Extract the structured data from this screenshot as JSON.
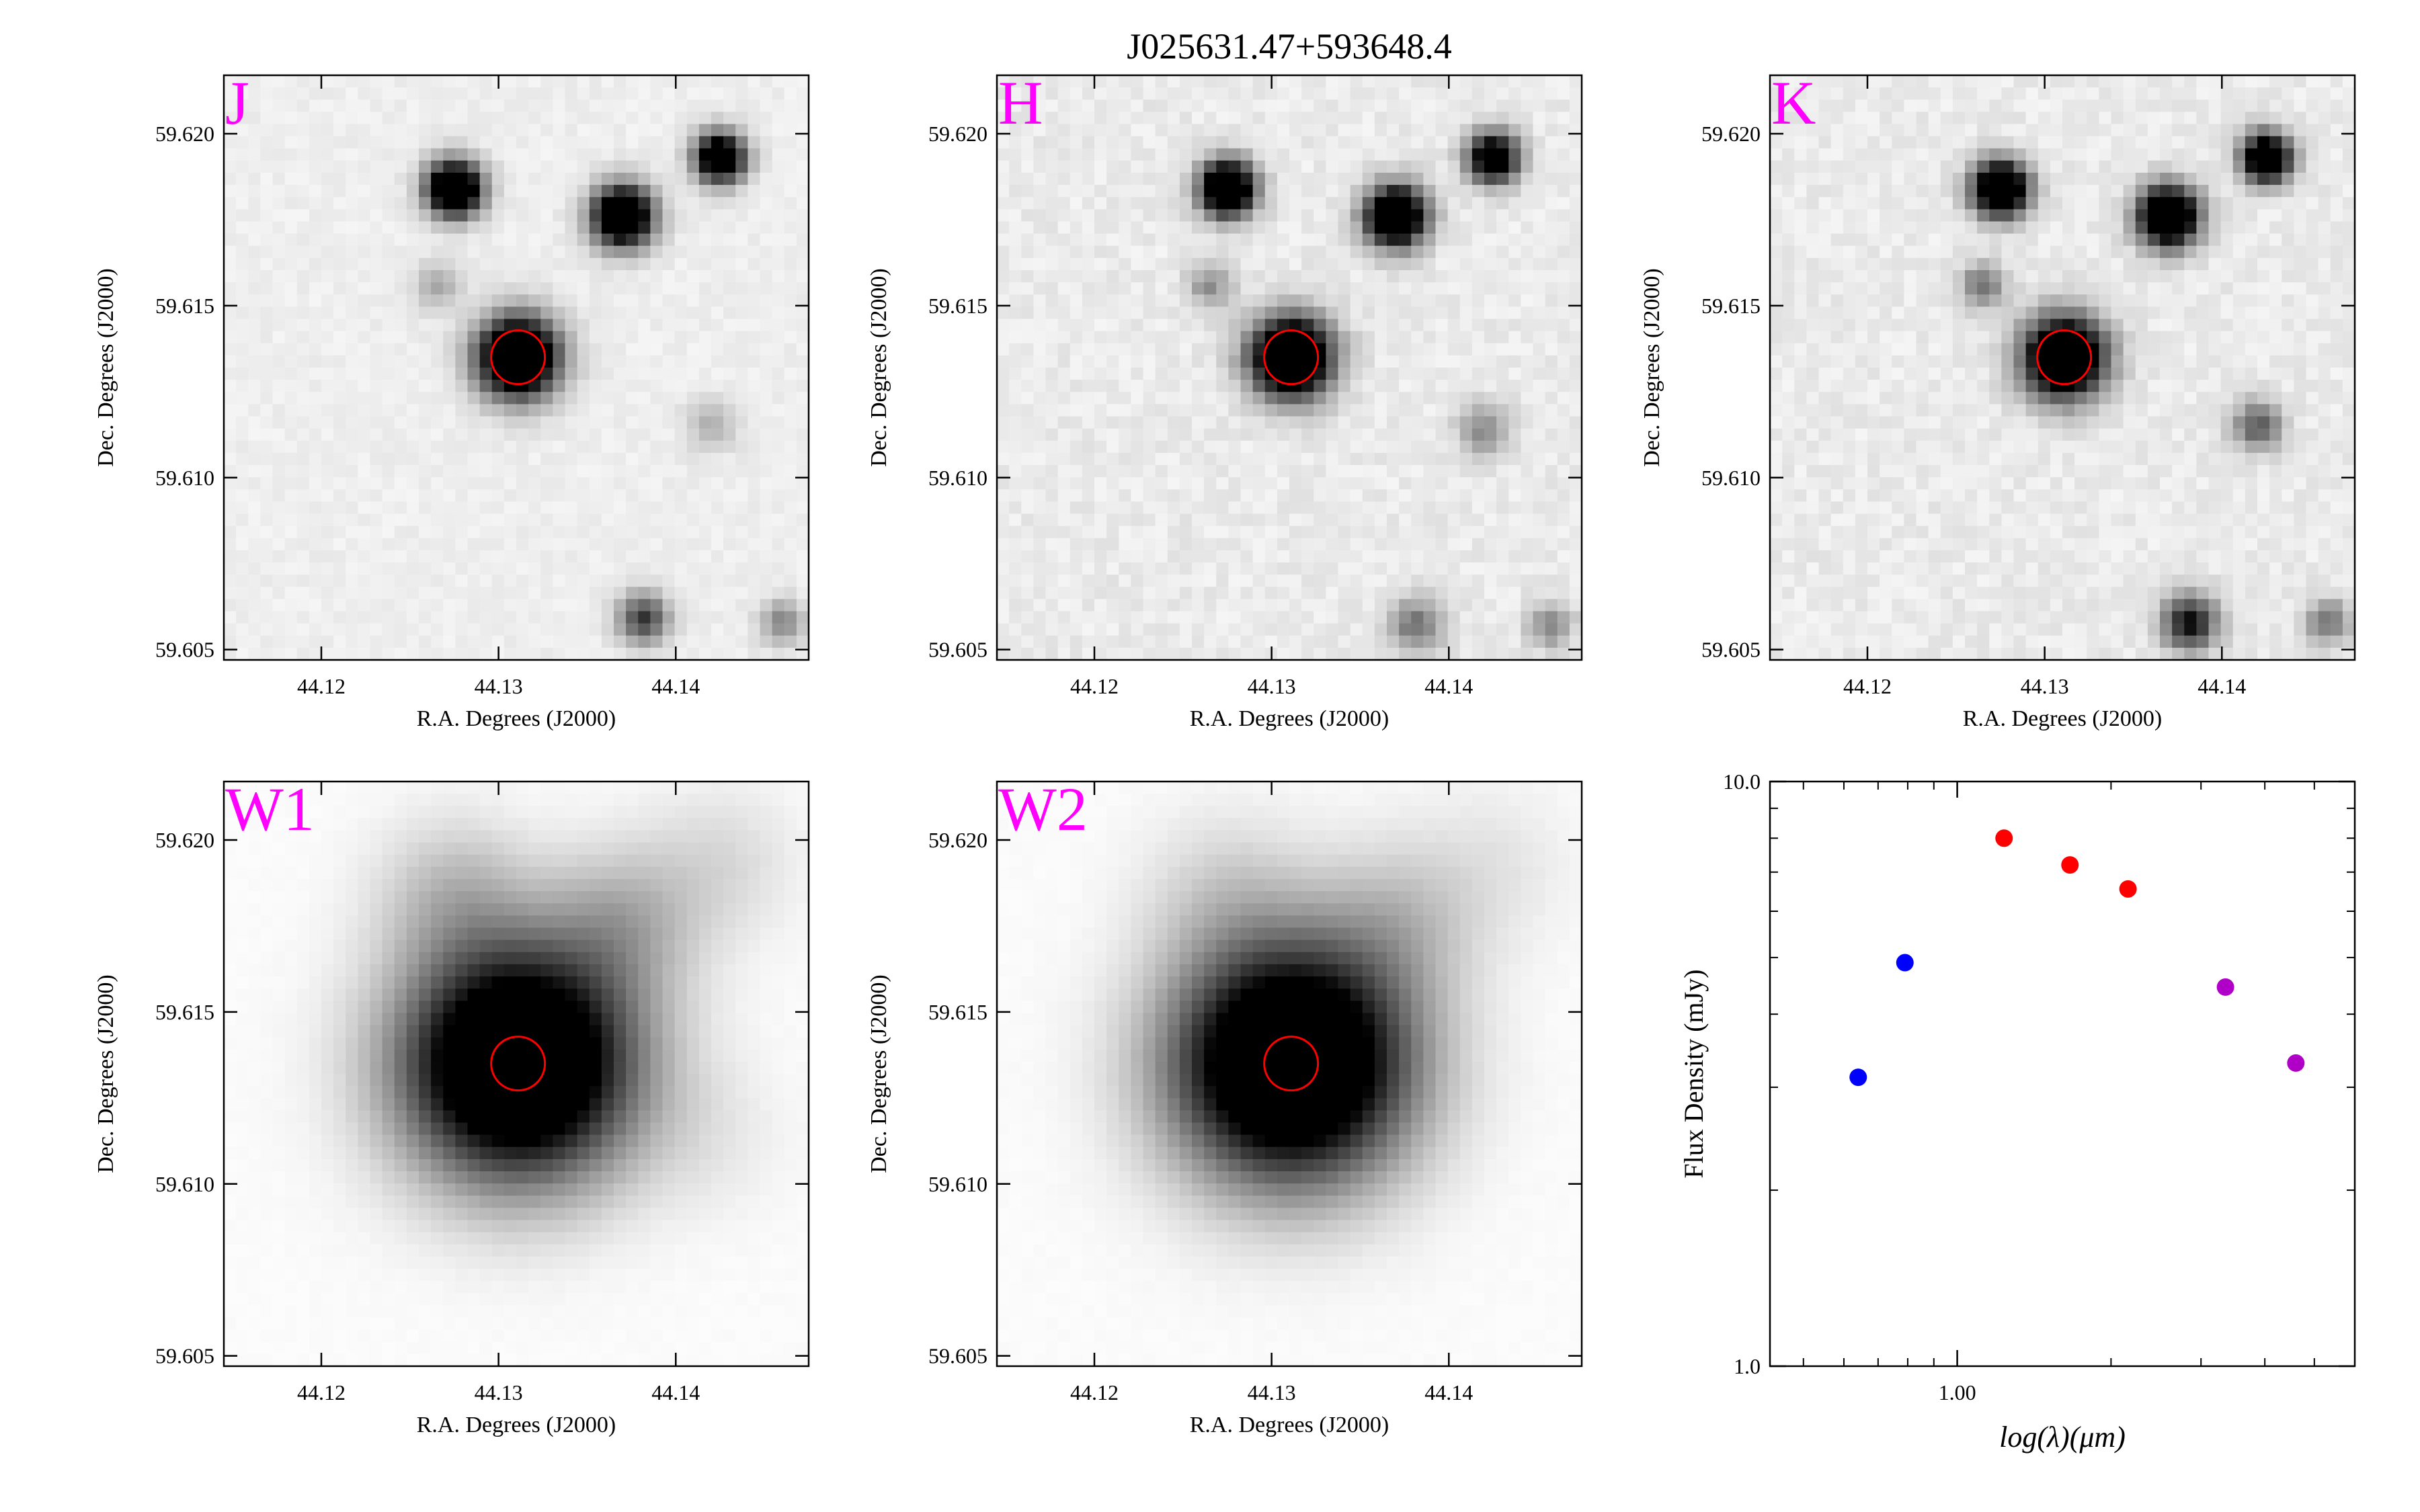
{
  "figure": {
    "title": "J025631.47+593648.4"
  },
  "colors": {
    "band_label": "#ff00ff",
    "aperture": "#ff0000",
    "optical_points": "#0000ff",
    "nir_points": "#ff0000",
    "wise_points": "#b000c8"
  },
  "chart_data": [
    {
      "type": "heatmap",
      "band": "J",
      "xlabel": "R.A. Degrees (J2000)",
      "ylabel": "Dec. Degrees (J2000)",
      "xlim": [
        44.1145,
        44.1475
      ],
      "ylim": [
        59.6047,
        59.6217
      ],
      "xticks": [
        "44.12",
        "44.13",
        "44.14"
      ],
      "yticks": [
        "59.605",
        "59.610",
        "59.615",
        "59.620"
      ],
      "target": {
        "ra": 44.1311,
        "dec": 59.6135
      },
      "sources": [
        {
          "ra": 44.1311,
          "dec": 59.6135,
          "flux": 1.0,
          "fwhm": 0.0016
        },
        {
          "ra": 44.1275,
          "dec": 59.6184,
          "flux": 0.95,
          "fwhm": 0.0011
        },
        {
          "ra": 44.137,
          "dec": 59.6176,
          "flux": 0.95,
          "fwhm": 0.0012
        },
        {
          "ra": 44.1425,
          "dec": 59.6193,
          "flux": 0.85,
          "fwhm": 0.001
        },
        {
          "ra": 44.1265,
          "dec": 59.6156,
          "flux": 0.18,
          "fwhm": 0.0009
        },
        {
          "ra": 44.142,
          "dec": 59.6115,
          "flux": 0.15,
          "fwhm": 0.001
        },
        {
          "ra": 44.1382,
          "dec": 59.6059,
          "flux": 0.45,
          "fwhm": 0.001
        },
        {
          "ra": 44.146,
          "dec": 59.6058,
          "flux": 0.25,
          "fwhm": 0.0009
        }
      ]
    },
    {
      "type": "heatmap",
      "band": "H",
      "xlabel": "R.A. Degrees (J2000)",
      "ylabel": "Dec. Degrees (J2000)",
      "xlim": [
        44.1145,
        44.1475
      ],
      "ylim": [
        59.6047,
        59.6217
      ],
      "xticks": [
        "44.12",
        "44.13",
        "44.14"
      ],
      "yticks": [
        "59.605",
        "59.610",
        "59.615",
        "59.620"
      ],
      "target": {
        "ra": 44.1311,
        "dec": 59.6135
      },
      "sources": [
        {
          "ra": 44.1311,
          "dec": 59.6135,
          "flux": 1.0,
          "fwhm": 0.0016
        },
        {
          "ra": 44.1275,
          "dec": 59.6184,
          "flux": 0.95,
          "fwhm": 0.0011
        },
        {
          "ra": 44.137,
          "dec": 59.6176,
          "flux": 0.95,
          "fwhm": 0.0012
        },
        {
          "ra": 44.1425,
          "dec": 59.6193,
          "flux": 0.8,
          "fwhm": 0.001
        },
        {
          "ra": 44.1265,
          "dec": 59.6156,
          "flux": 0.22,
          "fwhm": 0.0009
        },
        {
          "ra": 44.142,
          "dec": 59.6114,
          "flux": 0.25,
          "fwhm": 0.001
        },
        {
          "ra": 44.1382,
          "dec": 59.6057,
          "flux": 0.3,
          "fwhm": 0.0011
        },
        {
          "ra": 44.1457,
          "dec": 59.6057,
          "flux": 0.25,
          "fwhm": 0.0009
        }
      ]
    },
    {
      "type": "heatmap",
      "band": "K",
      "xlabel": "R.A. Degrees (J2000)",
      "ylabel": "Dec. Degrees (J2000)",
      "xlim": [
        44.1145,
        44.1475
      ],
      "ylim": [
        59.6047,
        59.6217
      ],
      "xticks": [
        "44.12",
        "44.13",
        "44.14"
      ],
      "yticks": [
        "59.605",
        "59.610",
        "59.615",
        "59.620"
      ],
      "target": {
        "ra": 44.1311,
        "dec": 59.6135
      },
      "sources": [
        {
          "ra": 44.1311,
          "dec": 59.6135,
          "flux": 1.0,
          "fwhm": 0.0016
        },
        {
          "ra": 44.1275,
          "dec": 59.6184,
          "flux": 0.95,
          "fwhm": 0.0011
        },
        {
          "ra": 44.137,
          "dec": 59.6176,
          "flux": 0.95,
          "fwhm": 0.0012
        },
        {
          "ra": 44.1425,
          "dec": 59.6193,
          "flux": 0.85,
          "fwhm": 0.001
        },
        {
          "ra": 44.1265,
          "dec": 59.6156,
          "flux": 0.3,
          "fwhm": 0.0009
        },
        {
          "ra": 44.142,
          "dec": 59.6115,
          "flux": 0.35,
          "fwhm": 0.001
        },
        {
          "ra": 44.1382,
          "dec": 59.6058,
          "flux": 0.55,
          "fwhm": 0.0011
        },
        {
          "ra": 44.146,
          "dec": 59.6058,
          "flux": 0.3,
          "fwhm": 0.0009
        }
      ]
    },
    {
      "type": "heatmap",
      "band": "W1",
      "xlabel": "R.A. Degrees (J2000)",
      "ylabel": "Dec. Degrees (J2000)",
      "xlim": [
        44.1145,
        44.1475
      ],
      "ylim": [
        59.6047,
        59.6217
      ],
      "xticks": [
        "44.12",
        "44.13",
        "44.14"
      ],
      "yticks": [
        "59.605",
        "59.610",
        "59.615",
        "59.620"
      ],
      "target": {
        "ra": 44.1311,
        "dec": 59.6135
      },
      "sources": [
        {
          "ra": 44.1311,
          "dec": 59.6135,
          "flux": 1.0,
          "fwhm": 0.0045
        },
        {
          "ra": 44.1275,
          "dec": 59.6184,
          "flux": 0.14,
          "fwhm": 0.003
        },
        {
          "ra": 44.137,
          "dec": 59.6176,
          "flux": 0.16,
          "fwhm": 0.003
        },
        {
          "ra": 44.1425,
          "dec": 59.6193,
          "flux": 0.08,
          "fwhm": 0.003
        },
        {
          "ra": 44.142,
          "dec": 59.6113,
          "flux": 0.04,
          "fwhm": 0.003
        }
      ]
    },
    {
      "type": "heatmap",
      "band": "W2",
      "xlabel": "R.A. Degrees (J2000)",
      "ylabel": "Dec. Degrees (J2000)",
      "xlim": [
        44.1145,
        44.1475
      ],
      "ylim": [
        59.6047,
        59.6217
      ],
      "xticks": [
        "44.12",
        "44.13",
        "44.14"
      ],
      "yticks": [
        "59.605",
        "59.610",
        "59.615",
        "59.620"
      ],
      "target": {
        "ra": 44.1311,
        "dec": 59.6135
      },
      "sources": [
        {
          "ra": 44.1311,
          "dec": 59.6135,
          "flux": 1.0,
          "fwhm": 0.0046
        },
        {
          "ra": 44.1275,
          "dec": 59.6184,
          "flux": 0.09,
          "fwhm": 0.0032
        },
        {
          "ra": 44.137,
          "dec": 59.6176,
          "flux": 0.12,
          "fwhm": 0.0032
        },
        {
          "ra": 44.1425,
          "dec": 59.6193,
          "flux": 0.05,
          "fwhm": 0.0032
        }
      ]
    },
    {
      "type": "scatter",
      "xlabel": "log(λ)(μm)",
      "ylabel": "Flux Density (mJy)",
      "x_scale": "log",
      "y_scale": "log",
      "xlim": [
        0.43,
        6.0
      ],
      "ylim": [
        1.0,
        10.0
      ],
      "xticks": [
        "1.00"
      ],
      "yticks": [
        "1.0",
        "10.0"
      ],
      "series": [
        {
          "color_key": "optical_points",
          "x": [
            0.64,
            0.79
          ],
          "y": [
            3.12,
            4.9
          ]
        },
        {
          "color_key": "nir_points",
          "x": [
            1.235,
            1.662,
            2.159
          ],
          "y": [
            8.0,
            7.2,
            6.55
          ]
        },
        {
          "color_key": "wise_points",
          "x": [
            3.35,
            4.6
          ],
          "y": [
            4.45,
            3.3
          ]
        }
      ]
    }
  ]
}
